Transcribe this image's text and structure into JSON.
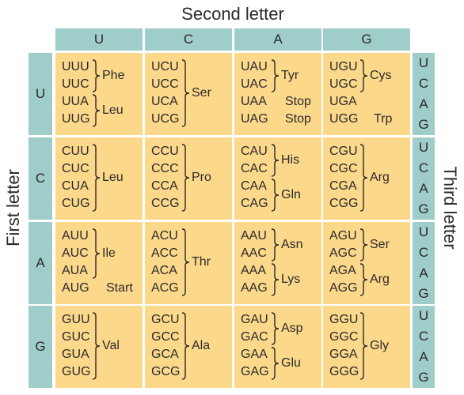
{
  "titles": {
    "second": "Second letter",
    "first": "First letter",
    "third": "Third letter"
  },
  "second_letters": [
    "U",
    "C",
    "A",
    "G"
  ],
  "first_letters": [
    "U",
    "C",
    "A",
    "G"
  ],
  "third_letters": [
    "U",
    "C",
    "A",
    "G"
  ],
  "cells": [
    {
      "codons": [
        "UUU",
        "UUC",
        "UUA",
        "UUG"
      ],
      "groups": [
        {
          "start": 0,
          "end": 1,
          "label": "Phe"
        },
        {
          "start": 2,
          "end": 3,
          "label": "Leu"
        }
      ]
    },
    {
      "codons": [
        "UCU",
        "UCC",
        "UCA",
        "UCG"
      ],
      "groups": [
        {
          "start": 0,
          "end": 3,
          "label": "Ser"
        }
      ]
    },
    {
      "codons": [
        "UAU",
        "UAC",
        "UAA",
        "UAG"
      ],
      "groups": [
        {
          "start": 0,
          "end": 1,
          "label": "Tyr"
        },
        {
          "start": 2,
          "end": 2,
          "label": "Stop",
          "brace": false
        },
        {
          "start": 3,
          "end": 3,
          "label": "Stop",
          "brace": false
        }
      ]
    },
    {
      "codons": [
        "UGU",
        "UGC",
        "UGA",
        "UGG"
      ],
      "groups": [
        {
          "start": 0,
          "end": 1,
          "label": "Cys"
        },
        {
          "start": 3,
          "end": 3,
          "label": "Trp",
          "brace": false
        }
      ]
    },
    {
      "codons": [
        "CUU",
        "CUC",
        "CUA",
        "CUG"
      ],
      "groups": [
        {
          "start": 0,
          "end": 3,
          "label": "Leu"
        }
      ]
    },
    {
      "codons": [
        "CCU",
        "CCC",
        "CCA",
        "CCG"
      ],
      "groups": [
        {
          "start": 0,
          "end": 3,
          "label": "Pro"
        }
      ]
    },
    {
      "codons": [
        "CAU",
        "CAC",
        "CAA",
        "CAG"
      ],
      "groups": [
        {
          "start": 0,
          "end": 1,
          "label": "His"
        },
        {
          "start": 2,
          "end": 3,
          "label": "Gln"
        }
      ]
    },
    {
      "codons": [
        "CGU",
        "CGC",
        "CGA",
        "CGG"
      ],
      "groups": [
        {
          "start": 0,
          "end": 3,
          "label": "Arg"
        }
      ]
    },
    {
      "codons": [
        "AUU",
        "AUC",
        "AUA",
        "AUG"
      ],
      "groups": [
        {
          "start": 0,
          "end": 2,
          "label": "Ile"
        },
        {
          "start": 3,
          "end": 3,
          "label": "Start",
          "brace": false
        }
      ]
    },
    {
      "codons": [
        "ACU",
        "ACC",
        "ACA",
        "ACG"
      ],
      "groups": [
        {
          "start": 0,
          "end": 3,
          "label": "Thr"
        }
      ]
    },
    {
      "codons": [
        "AAU",
        "AAC",
        "AAA",
        "AAG"
      ],
      "groups": [
        {
          "start": 0,
          "end": 1,
          "label": "Asn"
        },
        {
          "start": 2,
          "end": 3,
          "label": "Lys"
        }
      ]
    },
    {
      "codons": [
        "AGU",
        "AGC",
        "AGA",
        "AGG"
      ],
      "groups": [
        {
          "start": 0,
          "end": 1,
          "label": "Ser"
        },
        {
          "start": 2,
          "end": 3,
          "label": "Arg"
        }
      ]
    },
    {
      "codons": [
        "GUU",
        "GUC",
        "GUA",
        "GUG"
      ],
      "groups": [
        {
          "start": 0,
          "end": 3,
          "label": "Val"
        }
      ]
    },
    {
      "codons": [
        "GCU",
        "GCC",
        "GCA",
        "GCG"
      ],
      "groups": [
        {
          "start": 0,
          "end": 3,
          "label": "Ala"
        }
      ]
    },
    {
      "codons": [
        "GAU",
        "GAC",
        "GAA",
        "GAG"
      ],
      "groups": [
        {
          "start": 0,
          "end": 1,
          "label": "Asp"
        },
        {
          "start": 2,
          "end": 3,
          "label": "Glu"
        }
      ]
    },
    {
      "codons": [
        "GGU",
        "GGC",
        "GGA",
        "GGG"
      ],
      "groups": [
        {
          "start": 0,
          "end": 3,
          "label": "Gly"
        }
      ]
    }
  ],
  "colors": {
    "header": "#9fcdc9",
    "cell": "#fcd88a",
    "text": "#2a2a2a"
  }
}
